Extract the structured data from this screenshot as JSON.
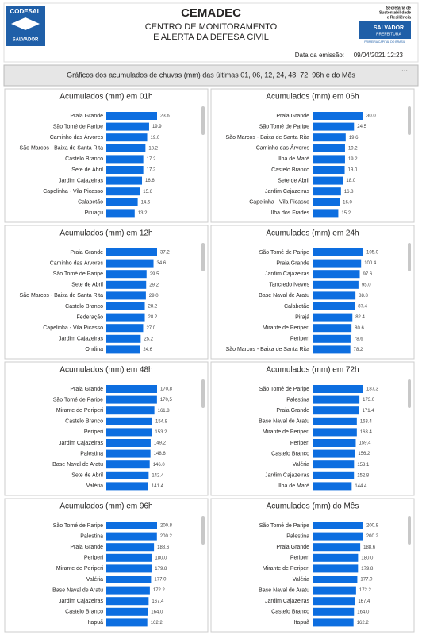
{
  "header": {
    "logo_left": "CODESAL",
    "logo_left_sub": "SALVADOR",
    "title": "CEMADEC",
    "subtitle_1": "CENTRO DE MONITORAMENTO",
    "subtitle_2": "E ALERTA DA DEFESA CIVIL",
    "secretaria": [
      "Secretaria de",
      "Sustentabilidade",
      "e Resiliência"
    ],
    "logo_right": "SALVADOR",
    "logo_right_sub": "PREFEITURA",
    "logo_right_motto": "PRIMEIRA CAPITAL DO BRASIL",
    "date_label": "Data da emissão:",
    "date": "09/04/2021 12:23"
  },
  "banner": "Gráficos dos acumulados de chuvas (mm) das últimas 01, 06, 12, 24, 48, 72, 96h e do Mês",
  "chart_data": [
    {
      "type": "bar",
      "orientation": "horizontal",
      "color": "#0d6ee0",
      "title": "Acumulados (mm) em 01h",
      "categories": [
        "Praia Grande",
        "São Tomé de Paripe",
        "Caminho das Árvores",
        "São Marcos - Baixa de Santa Rita",
        "Castelo Branco",
        "Sete de Abril",
        "Jardim Cajazeiras",
        "Capelinha - Vila Picasso",
        "Calabetão",
        "Pituaçu"
      ],
      "values": [
        23.6,
        19.9,
        19.0,
        18.2,
        17.2,
        17.2,
        16.6,
        15.6,
        14.6,
        13.2
      ],
      "value_labels": [
        "23.6",
        "19.9",
        "19.0",
        "18.2",
        "17.2",
        "17.2",
        "16.6",
        "15.6",
        "14.6",
        "13.2"
      ]
    },
    {
      "type": "bar",
      "orientation": "horizontal",
      "color": "#0d6ee0",
      "title": "Acumulados (mm) em 06h",
      "categories": [
        "Praia Grande",
        "São Tomé de Paripe",
        "São Marcos - Baixa de Santa Rita",
        "Caminho das Árvores",
        "Ilha de Maré",
        "Castelo Branco",
        "Sete de Abril",
        "Jardim Cajazeiras",
        "Capelinha - Vila Picasso",
        "Ilha dos Frades"
      ],
      "values": [
        30.0,
        24.5,
        19.6,
        19.2,
        19.2,
        19.0,
        18.0,
        16.8,
        16.0,
        15.2
      ],
      "value_labels": [
        "30.0",
        "24.5",
        "19.6",
        "19.2",
        "19.2",
        "19.0",
        "18.0",
        "16.8",
        "16.0",
        "15.2"
      ]
    },
    {
      "type": "bar",
      "orientation": "horizontal",
      "color": "#0d6ee0",
      "title": "Acumulados (mm) em 12h",
      "categories": [
        "Praia Grande",
        "Caminho das Árvores",
        "São Tomé de Paripe",
        "Sete de Abril",
        "São Marcos - Baixa de Santa Rita",
        "Castelo Branco",
        "Federação",
        "Capelinha - Vila Picasso",
        "Jardim Cajazeiras",
        "Ondina"
      ],
      "values": [
        37.2,
        34.6,
        29.5,
        29.2,
        29.0,
        28.2,
        28.2,
        27.0,
        25.2,
        24.6
      ],
      "value_labels": [
        "37.2",
        "34.6",
        "29.5",
        "29.2",
        "29.0",
        "28.2",
        "28.2",
        "27.0",
        "25.2",
        "24.6"
      ]
    },
    {
      "type": "bar",
      "orientation": "horizontal",
      "color": "#0d6ee0",
      "title": "Acumulados (mm) em 24h",
      "categories": [
        "São Tomé de Paripe",
        "Praia Grande",
        "Jardim Cajazeiras",
        "Tancredo Neves",
        "Base Naval de Aratu",
        "Calabetão",
        "Pirajá",
        "Mirante de Periperi",
        "Periperi",
        "São Marcos - Baixa de Santa Rita"
      ],
      "values": [
        105.0,
        100.4,
        97.6,
        95.0,
        88.8,
        87.4,
        82.4,
        80.6,
        78.6,
        78.2
      ],
      "value_labels": [
        "105.0",
        "100.4",
        "97.6",
        "95.0",
        "88.8",
        "87.4",
        "82.4",
        "80.6",
        "78.6",
        "78.2"
      ]
    },
    {
      "type": "bar",
      "orientation": "horizontal",
      "color": "#0d6ee0",
      "title": "Acumulados (mm) em 48h",
      "categories": [
        "Praia Grande",
        "São Tomé de Paripe",
        "Mirante de Periperi",
        "Castelo Branco",
        "Periperi",
        "Jardim Cajazeiras",
        "Palestina",
        "Base Naval de Aratu",
        "Sete de Abril",
        "Valéria"
      ],
      "values": [
        170.8,
        170.5,
        161.8,
        154.8,
        153.2,
        149.2,
        148.6,
        146.0,
        142.4,
        141.4
      ],
      "value_labels": [
        "170,8",
        "170,5",
        "161.8",
        "154.8",
        "153.2",
        "149.2",
        "148.6",
        "146.0",
        "142.4",
        "141.4"
      ]
    },
    {
      "type": "bar",
      "orientation": "horizontal",
      "color": "#0d6ee0",
      "title": "Acumulados (mm) em 72h",
      "categories": [
        "São Tomé de Paripe",
        "Palestina",
        "Praia Grande",
        "Base Naval de Aratu",
        "Mirante de Periperi",
        "Periperi",
        "Castelo Branco",
        "Valéria",
        "Jardim Cajazeiras",
        "Ilha de Maré"
      ],
      "values": [
        187.3,
        173.0,
        171.4,
        163.4,
        163.4,
        159.4,
        156.2,
        153.1,
        152.8,
        144.4
      ],
      "value_labels": [
        "187,3",
        "173.0",
        "171.4",
        "163.4",
        "163.4",
        "159.4",
        "156.2",
        "153.1",
        "152.8",
        "144.4"
      ]
    },
    {
      "type": "bar",
      "orientation": "horizontal",
      "color": "#0d6ee0",
      "title": "Acumulados (mm) em 96h",
      "categories": [
        "São Tomé de Paripe",
        "Palestina",
        "Praia Grande",
        "Periperi",
        "Mirante de Periperi",
        "Valéria",
        "Base Naval de Aratu",
        "Jardim Cajazeiras",
        "Castelo Branco",
        "Itapuã"
      ],
      "values": [
        200.8,
        200.2,
        188.6,
        180.0,
        179.8,
        177.0,
        172.2,
        167.4,
        164.0,
        162.2
      ],
      "value_labels": [
        "200.8",
        "200.2",
        "188.6",
        "180.0",
        "179.8",
        "177.0",
        "172.2",
        "167.4",
        "164.0",
        "162.2"
      ]
    },
    {
      "type": "bar",
      "orientation": "horizontal",
      "color": "#0d6ee0",
      "title": "Acumulados (mm) do Mês",
      "categories": [
        "São Tomé de Paripe",
        "Palestina",
        "Praia Grande",
        "Periperi",
        "Mirante de Periperi",
        "Valéria",
        "Base Naval de Aratu",
        "Jardim Cajazeiras",
        "Castelo Branco",
        "Itapuã"
      ],
      "values": [
        200.8,
        200.2,
        188.6,
        180.0,
        179.8,
        177.0,
        172.2,
        167.4,
        164.0,
        162.2
      ],
      "value_labels": [
        "200.8",
        "200.2",
        "188.6",
        "180.0",
        "179.8",
        "177.0",
        "172.2",
        "167.4",
        "164.0",
        "162.2"
      ]
    }
  ]
}
